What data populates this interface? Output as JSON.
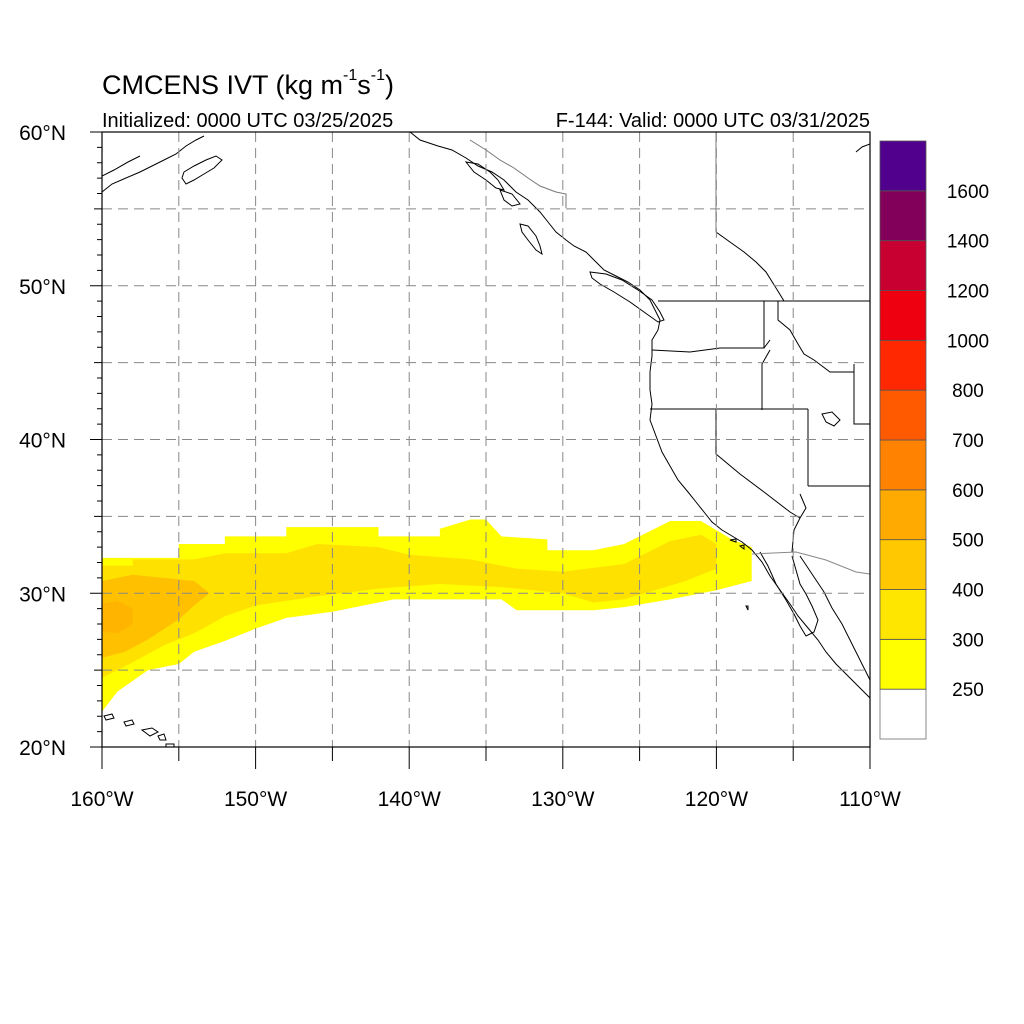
{
  "title": {
    "main_prefix": "CMCENS IVT (kg m",
    "sup1": "-1",
    "mid": "s",
    "sup2": "-1",
    "suffix": ")",
    "initialized": "Initialized: 0000 UTC 03/25/2025",
    "valid": "F-144: Valid: 0000 UTC 03/31/2025"
  },
  "map": {
    "lat_range": [
      20,
      60
    ],
    "lon_range": [
      -160,
      -110
    ],
    "lat_ticks": [
      {
        "value": 20,
        "label": "20°N"
      },
      {
        "value": 30,
        "label": "30°N"
      },
      {
        "value": 40,
        "label": "40°N"
      },
      {
        "value": 50,
        "label": "50°N"
      },
      {
        "value": 60,
        "label": "60°N"
      }
    ],
    "lon_ticks": [
      {
        "value": -160,
        "label": "160°W"
      },
      {
        "value": -150,
        "label": "150°W"
      },
      {
        "value": -140,
        "label": "140°W"
      },
      {
        "value": -130,
        "label": "130°W"
      },
      {
        "value": -120,
        "label": "120°W"
      },
      {
        "value": -110,
        "label": "110°W"
      }
    ],
    "gridlines": "dashed every 5 degrees"
  },
  "colorbar": {
    "levels": [
      {
        "label": "250",
        "color": "#ffff00"
      },
      {
        "label": "300",
        "color": "#ffe600"
      },
      {
        "label": "400",
        "color": "#ffc800"
      },
      {
        "label": "500",
        "color": "#ffaa00"
      },
      {
        "label": "600",
        "color": "#ff8200"
      },
      {
        "label": "700",
        "color": "#ff5a00"
      },
      {
        "label": "800",
        "color": "#ff2800"
      },
      {
        "label": "1000",
        "color": "#ee0010"
      },
      {
        "label": "1200",
        "color": "#c80032"
      },
      {
        "label": "1400",
        "color": "#82005a"
      },
      {
        "label": "1600",
        "color": "#50008c"
      }
    ],
    "below_color": "#ffffff"
  },
  "ivt_field": {
    "units": "kg m-1 s-1",
    "bands": [
      {
        "name": "ivt-250",
        "color": "#ffff00",
        "outline": [
          [
            -160,
            32.3
          ],
          [
            -155,
            32.3
          ],
          [
            -155,
            33.2
          ],
          [
            -152,
            33.2
          ],
          [
            -152,
            33.7
          ],
          [
            -148,
            33.7
          ],
          [
            -148,
            34.3
          ],
          [
            -142,
            34.3
          ],
          [
            -142,
            33.7
          ],
          [
            -138,
            33.7
          ],
          [
            -138,
            34.2
          ],
          [
            -136,
            34.8
          ],
          [
            -135,
            34.8
          ],
          [
            -134,
            33.7
          ],
          [
            -131,
            33.5
          ],
          [
            -131,
            32.8
          ],
          [
            -128,
            32.8
          ],
          [
            -126,
            33.2
          ],
          [
            -123,
            34.7
          ],
          [
            -121,
            34.7
          ],
          [
            -119,
            33.5
          ],
          [
            -117.7,
            33.0
          ],
          [
            -117.7,
            30.8
          ],
          [
            -120,
            30.2
          ],
          [
            -123,
            29.6
          ],
          [
            -126,
            29.1
          ],
          [
            -128,
            28.9
          ],
          [
            -133,
            28.9
          ],
          [
            -134,
            29.6
          ],
          [
            -141,
            29.6
          ],
          [
            -145,
            28.8
          ],
          [
            -148,
            28.4
          ],
          [
            -150,
            27.7
          ],
          [
            -152,
            26.9
          ],
          [
            -154,
            26.2
          ],
          [
            -155,
            25.4
          ],
          [
            -157,
            25.0
          ],
          [
            -158,
            24.3
          ],
          [
            -159,
            23.6
          ],
          [
            -160,
            22.3
          ]
        ]
      },
      {
        "name": "ivt-300",
        "color": "#ffe100",
        "outline": [
          [
            -160,
            31.8
          ],
          [
            -158,
            31.8
          ],
          [
            -158,
            32.2
          ],
          [
            -154,
            32.2
          ],
          [
            -152,
            32.6
          ],
          [
            -148,
            32.6
          ],
          [
            -146,
            33.2
          ],
          [
            -142,
            33.0
          ],
          [
            -140,
            32.5
          ],
          [
            -136,
            32.2
          ],
          [
            -133,
            31.6
          ],
          [
            -130,
            31.4
          ],
          [
            -126,
            31.9
          ],
          [
            -123,
            33.4
          ],
          [
            -121,
            33.8
          ],
          [
            -120,
            33.2
          ],
          [
            -120,
            31.6
          ],
          [
            -122,
            30.8
          ],
          [
            -124,
            30.2
          ],
          [
            -126,
            29.6
          ],
          [
            -128,
            29.4
          ],
          [
            -130,
            30.0
          ],
          [
            -134,
            30.4
          ],
          [
            -138,
            30.6
          ],
          [
            -142,
            30.3
          ],
          [
            -146,
            29.8
          ],
          [
            -150,
            29.2
          ],
          [
            -152,
            28.5
          ],
          [
            -154,
            27.4
          ],
          [
            -156,
            26.6
          ],
          [
            -158,
            25.5
          ],
          [
            -160,
            24.5
          ]
        ]
      },
      {
        "name": "ivt-400",
        "color": "#ffc000",
        "outline": [
          [
            -160,
            30.8
          ],
          [
            -158,
            31.2
          ],
          [
            -156,
            31.0
          ],
          [
            -154,
            30.8
          ],
          [
            -153,
            30.0
          ],
          [
            -154,
            29.2
          ],
          [
            -155,
            28.3
          ],
          [
            -157,
            27.0
          ],
          [
            -158.5,
            26.2
          ],
          [
            -160,
            25.8
          ]
        ]
      },
      {
        "name": "ivt-500",
        "color": "#ffb400",
        "outline": [
          [
            -160,
            29.3
          ],
          [
            -159,
            29.5
          ],
          [
            -158,
            29.0
          ],
          [
            -158,
            28.0
          ],
          [
            -159,
            27.4
          ],
          [
            -160,
            27.5
          ]
        ]
      }
    ]
  }
}
